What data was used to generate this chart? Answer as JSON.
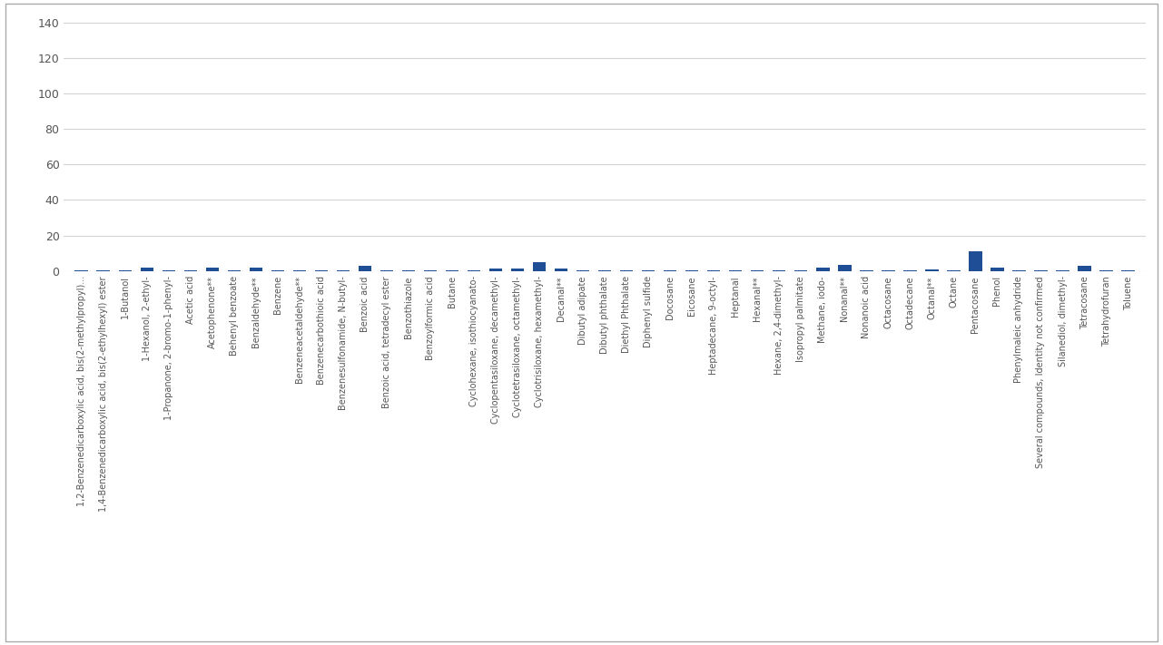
{
  "categories": [
    "1,2-Benzenedicarboxylic acid, bis(2-methylpropyl)...",
    "1,4-Benzenedicarboxylic acid, bis(2-ethylhexyl) ester",
    "1-Butanol",
    "1-Hexanol, 2-ethyl-",
    "1-Propanone, 2-bromo-1-phenyl-",
    "Acetic acid",
    "Acetophenone**",
    "Behenyl benzoate",
    "Benzaldehyde**",
    "Benzene",
    "Benzeneacetaldehyde**",
    "Benzenecarbothioic acid",
    "Benzenesulfonamide, N-butyl-",
    "Benzoic acid",
    "Benzoic acid, tetradecyl ester",
    "Benzothiazole",
    "Benzoylformic acid",
    "Butane",
    "Cyclohexane, isothiocyanato-",
    "Cyclopentasiloxane, decamethyl-",
    "Cyclotetrasiloxane, octamethyl-",
    "Cyclotrisiloxane, hexamethyl-",
    "Decanal**",
    "Dibutyl adipate",
    "Dibutyl phthalate",
    "Diethyl Phthalate",
    "Diphenyl sulfide",
    "Docosane",
    "Eicosane",
    "Heptadecane, 9-octyl-",
    "Heptanal",
    "Hexanal**",
    "Hexane, 2,4-dimethyl-",
    "Isopropyl palmitate",
    "Methane, iodo-",
    "Nonanal**",
    "Nonanoic acid",
    "Octacosane",
    "Octadecane",
    "Octanal**",
    "Octane",
    "Pentacosane",
    "Phenol",
    "Phenylmaleic anhydride",
    "Several compounds, Identity not confirmed",
    "Silanediol, dimethyl-",
    "Tetracosane",
    "Tetrahydrofuran",
    "Toluene"
  ],
  "values": [
    0.5,
    0.5,
    0.5,
    2.0,
    0.5,
    0.5,
    2.0,
    0.5,
    2.0,
    0.5,
    0.5,
    0.5,
    0.5,
    3.0,
    0.5,
    0.5,
    0.5,
    0.5,
    0.5,
    1.5,
    1.5,
    5.0,
    1.5,
    0.5,
    0.5,
    0.5,
    0.5,
    0.5,
    0.5,
    0.5,
    0.5,
    0.5,
    0.5,
    0.5,
    2.0,
    3.5,
    0.5,
    0.5,
    0.5,
    1.0,
    0.5,
    11.0,
    2.0,
    0.5,
    0.5,
    0.5,
    3.0,
    0.5,
    0.5
  ],
  "bar_color": "#1F4E96",
  "ylim": [
    0,
    140
  ],
  "yticks": [
    0,
    20,
    40,
    60,
    80,
    100,
    120,
    140
  ],
  "grid_color": "#D3D3D3",
  "background_color": "#FFFFFF",
  "label_fontsize": 7.0,
  "tick_fontsize": 9,
  "border_color": "#AAAAAA"
}
